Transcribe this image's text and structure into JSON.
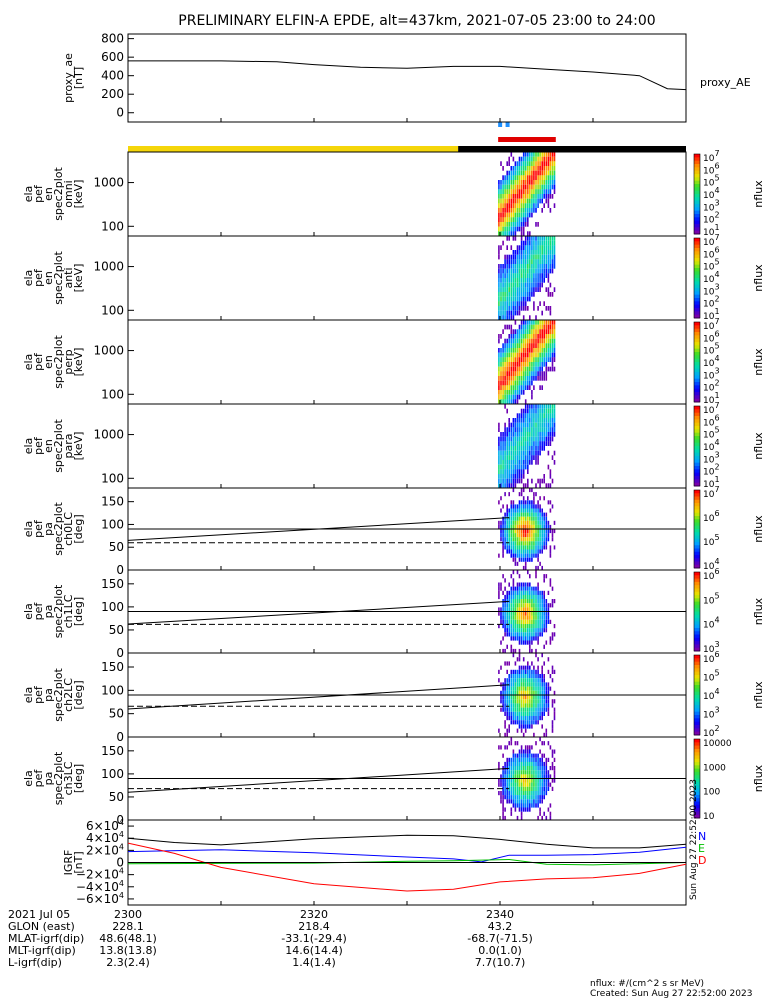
{
  "title": "PRELIMINARY ELFIN-A EPDE, alt=437km, 2021-07-05 23:00 to 24:00",
  "colors": {
    "status_yellow": "#f5d60a",
    "status_black": "#000000",
    "status_red": "#e00000",
    "status_blue": "#1e90ff",
    "grf_n": "#0000ff",
    "grf_e": "#00c000",
    "grf_d": "#ff0000",
    "line_black": "#000000"
  },
  "status_bar": {
    "segments": [
      {
        "color": "yellow",
        "start_min": 0,
        "end_min": 35.5
      },
      {
        "color": "black",
        "start_min": 35.5,
        "end_min": 60
      }
    ],
    "red_marker": {
      "start_min": 39.8,
      "end_min": 46.0
    },
    "blue_marker": {
      "start_min": 39.8,
      "end_min": 40.6
    }
  },
  "panels": [
    {
      "id": "proxy_ae",
      "ylabel": [
        "proxy_ae",
        "[nT]"
      ],
      "right_label": "proxy_AE",
      "yticks": [
        "800",
        "600",
        "400",
        "200",
        "0"
      ]
    },
    {
      "id": "en_omni",
      "ylabel": [
        "ela",
        "pef",
        "en",
        "spec2plot",
        "omni",
        "[keV]"
      ],
      "yticks": [
        "1000",
        "100"
      ],
      "cbar_label": "nflux",
      "cbar_ticks": [
        "10^7",
        "10^6",
        "10^5",
        "10^4",
        "10^3",
        "10^2",
        "10^1"
      ]
    },
    {
      "id": "en_anti",
      "ylabel": [
        "ela",
        "pef",
        "en",
        "spec2plot",
        "anti",
        "[keV]"
      ],
      "yticks": [
        "1000",
        "100"
      ],
      "cbar_label": "nflux",
      "cbar_ticks": [
        "10^7",
        "10^6",
        "10^5",
        "10^4",
        "10^3",
        "10^2",
        "10^1"
      ]
    },
    {
      "id": "en_perp",
      "ylabel": [
        "ela",
        "pef",
        "en",
        "spec2plot",
        "perp",
        "[keV]"
      ],
      "yticks": [
        "1000",
        "100"
      ],
      "cbar_label": "nflux",
      "cbar_ticks": [
        "10^7",
        "10^6",
        "10^5",
        "10^4",
        "10^3",
        "10^2",
        "10^1"
      ]
    },
    {
      "id": "en_para",
      "ylabel": [
        "ela",
        "pef",
        "en",
        "spec2plot",
        "para",
        "[keV]"
      ],
      "yticks": [
        "1000",
        "100"
      ],
      "cbar_label": "nflux",
      "cbar_ticks": [
        "10^7",
        "10^6",
        "10^5",
        "10^4",
        "10^3",
        "10^2",
        "10^1"
      ]
    },
    {
      "id": "pa_ch0",
      "ylabel": [
        "ela",
        "pef",
        "pa",
        "spec2plot",
        "ch0LC",
        "[deg]"
      ],
      "yticks": [
        "150",
        "100",
        "50",
        "0"
      ],
      "cbar_label": "nflux",
      "cbar_ticks": [
        "10^7",
        "10^6",
        "10^5",
        "10^4"
      ]
    },
    {
      "id": "pa_ch1",
      "ylabel": [
        "ela",
        "pef",
        "pa",
        "spec2plot",
        "ch1LC",
        "[deg]"
      ],
      "yticks": [
        "150",
        "100",
        "50",
        "0"
      ],
      "cbar_label": "nflux",
      "cbar_ticks": [
        "10^6",
        "10^5",
        "10^4",
        "10^3"
      ]
    },
    {
      "id": "pa_ch2",
      "ylabel": [
        "ela",
        "pef",
        "pa",
        "spec2plot",
        "ch2LC",
        "[deg]"
      ],
      "yticks": [
        "150",
        "100",
        "50",
        "0"
      ],
      "cbar_label": "nflux",
      "cbar_ticks": [
        "10^6",
        "10^5",
        "10^4",
        "10^3",
        "10^2"
      ]
    },
    {
      "id": "pa_ch3",
      "ylabel": [
        "ela",
        "pef",
        "pa",
        "spec2plot",
        "ch3LC",
        "[deg]"
      ],
      "yticks": [
        "150",
        "100",
        "50",
        "0"
      ],
      "cbar_label": "nflux",
      "cbar_ticks": [
        "10000",
        "1000",
        "100",
        "10"
      ]
    },
    {
      "id": "grf",
      "ylabel": [
        "IGRF",
        "[nT]"
      ],
      "yticks": [
        "6×10^4",
        "4×10^4",
        "2×10^4",
        "0",
        "−2×10^4",
        "−4×10^4",
        "−6×10^4"
      ],
      "legend": [
        "N",
        "E",
        "D"
      ]
    }
  ],
  "chart_data": {
    "type": "line",
    "x_unit": "minutes after 2021-07-05 23:00",
    "xlim": [
      0,
      60
    ],
    "proxy_ae": {
      "x": [
        0,
        10,
        16,
        20,
        25,
        30,
        35,
        40,
        45,
        50,
        55,
        58,
        60
      ],
      "y": [
        560,
        560,
        550,
        520,
        490,
        480,
        500,
        500,
        470,
        440,
        400,
        260,
        250
      ],
      "ylim": [
        -100,
        850
      ]
    },
    "energy_ylim_log": [
      60,
      5000
    ],
    "pa_ylim": [
      0,
      180
    ],
    "pa_lines": {
      "ch0": {
        "solid": {
          "x": [
            0,
            41
          ],
          "y": [
            65,
            115
          ]
        },
        "dashed": {
          "x": [
            0,
            41
          ],
          "y": [
            60,
            60
          ]
        },
        "h90": 90
      },
      "ch1": {
        "solid": {
          "x": [
            0,
            41
          ],
          "y": [
            63,
            112
          ]
        },
        "dashed": {
          "x": [
            0,
            41
          ],
          "y": [
            62,
            62
          ]
        },
        "h90": 90
      },
      "ch2": {
        "solid": {
          "x": [
            0,
            41
          ],
          "y": [
            60,
            112
          ]
        },
        "dashed": {
          "x": [
            0,
            41
          ],
          "y": [
            66,
            66
          ]
        },
        "h90": 90
      },
      "ch3": {
        "solid": {
          "x": [
            0,
            41
          ],
          "y": [
            60,
            112
          ]
        },
        "dashed": {
          "x": [
            0,
            41
          ],
          "y": [
            68,
            68
          ]
        },
        "h90": 90
      }
    },
    "grf": {
      "ylim": [
        -70000,
        70000
      ],
      "series": [
        {
          "name": "N",
          "x": [
            0,
            10,
            20,
            30,
            35,
            38,
            41,
            45,
            50,
            55,
            60
          ],
          "y": [
            18000,
            21000,
            16000,
            9000,
            6000,
            1000,
            12000,
            12000,
            13000,
            17000,
            25000
          ]
        },
        {
          "name": "E",
          "x": [
            0,
            10,
            20,
            30,
            35,
            41,
            45,
            50,
            55,
            60
          ],
          "y": [
            -2000,
            -1500,
            -1000,
            2000,
            3000,
            5000,
            -3000,
            -4000,
            -2000,
            0
          ]
        },
        {
          "name": "D",
          "x": [
            0,
            5,
            10,
            20,
            30,
            35,
            40,
            45,
            50,
            55,
            60
          ],
          "y": [
            32000,
            15000,
            -8000,
            -35000,
            -47000,
            -44000,
            -32000,
            -27000,
            -25000,
            -18000,
            -3000
          ]
        },
        {
          "name": "total",
          "x": [
            0,
            5,
            10,
            20,
            30,
            35,
            40,
            45,
            50,
            55,
            60
          ],
          "y": [
            40000,
            33000,
            29000,
            39000,
            45000,
            44000,
            38000,
            30000,
            24000,
            24000,
            30000
          ]
        }
      ]
    }
  },
  "bottom_table": {
    "rows": [
      {
        "label": "2021 Jul 05",
        "values": [
          "2300",
          "2320",
          "2340"
        ]
      },
      {
        "label": "GLON (east)",
        "values": [
          "228.1",
          "218.4",
          "43.2"
        ]
      },
      {
        "label": "MLAT-igrf(dip)",
        "values": [
          "48.6(48.1)",
          "-33.1(-29.4)",
          "-68.7(-71.5)"
        ]
      },
      {
        "label": "MLT-igrf(dip)",
        "values": [
          "13.8(13.8)",
          "14.6(14.4)",
          "0.0(1.0)"
        ]
      },
      {
        "label": "L-igrf(dip)",
        "values": [
          "2.3(2.4)",
          "1.4(1.4)",
          "7.7(10.7)"
        ]
      }
    ]
  },
  "footer": {
    "line1": "nflux: #/(cm^2 s sr MeV)",
    "line2": "Created: Sun Aug 27 22:52:00 2023",
    "side_stamp": "Sun Aug 27 22:52:00 2023"
  }
}
